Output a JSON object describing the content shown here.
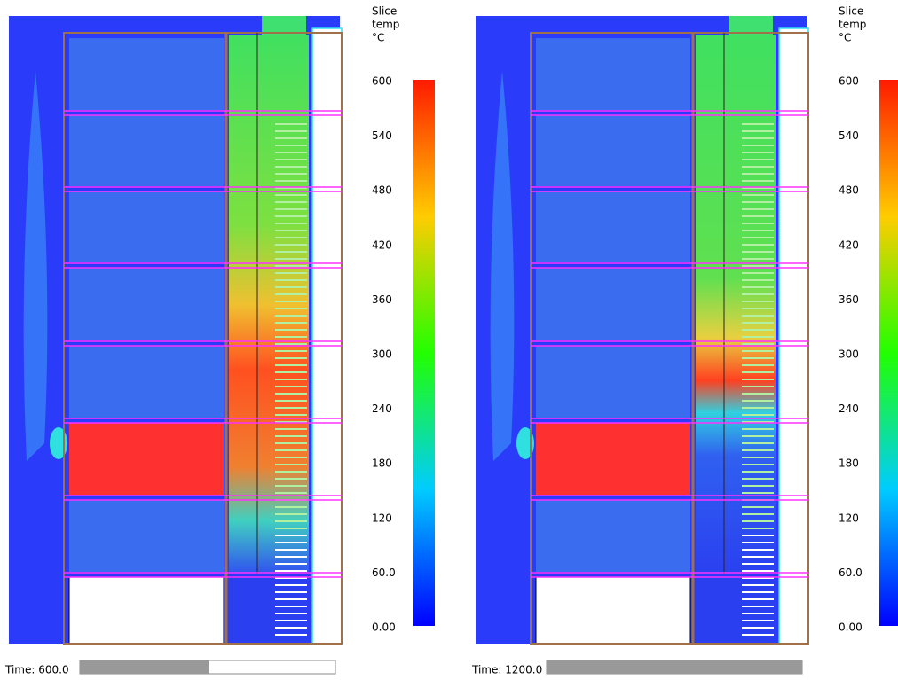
{
  "panels": [
    {
      "colorbar": {
        "title": [
          "Slice",
          "temp",
          "°C"
        ],
        "labels": [
          "600",
          "540",
          "480",
          "420",
          "360",
          "300",
          "240",
          "180",
          "120",
          "60.0",
          "0.00"
        ]
      },
      "time_label": "Time: 600.0"
    },
    {
      "colorbar": {
        "title": [
          "Slice",
          "temp",
          "°C"
        ],
        "labels": [
          "600",
          "540",
          "480",
          "420",
          "360",
          "300",
          "240",
          "180",
          "120",
          "60.0",
          "0.00"
        ]
      },
      "time_label": "Time: 1200.0"
    }
  ]
}
